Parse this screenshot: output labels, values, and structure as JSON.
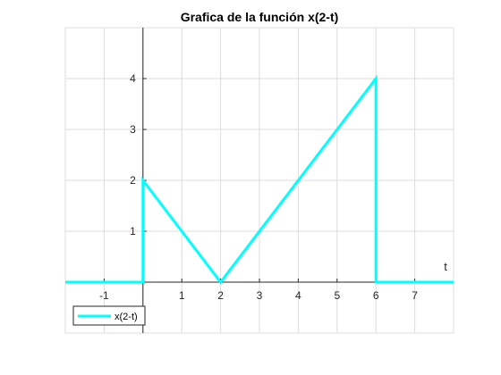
{
  "chart_data": {
    "type": "line",
    "title": "Grafica de la función x(2-t)",
    "xlabel": "t",
    "ylabel": "",
    "xlim": [
      -2,
      8
    ],
    "ylim": [
      -1,
      5
    ],
    "xticks": [
      -1,
      1,
      2,
      3,
      4,
      5,
      6,
      7
    ],
    "yticks": [
      1,
      2,
      3,
      4
    ],
    "x_grid_lines": [
      -2,
      -1,
      0,
      1,
      2,
      3,
      4,
      5,
      6,
      7,
      8
    ],
    "y_grid_lines": [
      -1,
      0,
      1,
      2,
      3,
      4,
      5
    ],
    "grid": true,
    "axis_location": "origin",
    "legend_position": "bottom-left",
    "series": [
      {
        "name": "x(2-t)",
        "color": "#00ffff",
        "x": [
          -2,
          0,
          0,
          2,
          6,
          6,
          8
        ],
        "y": [
          0,
          0,
          2,
          0,
          4,
          0,
          0
        ]
      }
    ]
  }
}
